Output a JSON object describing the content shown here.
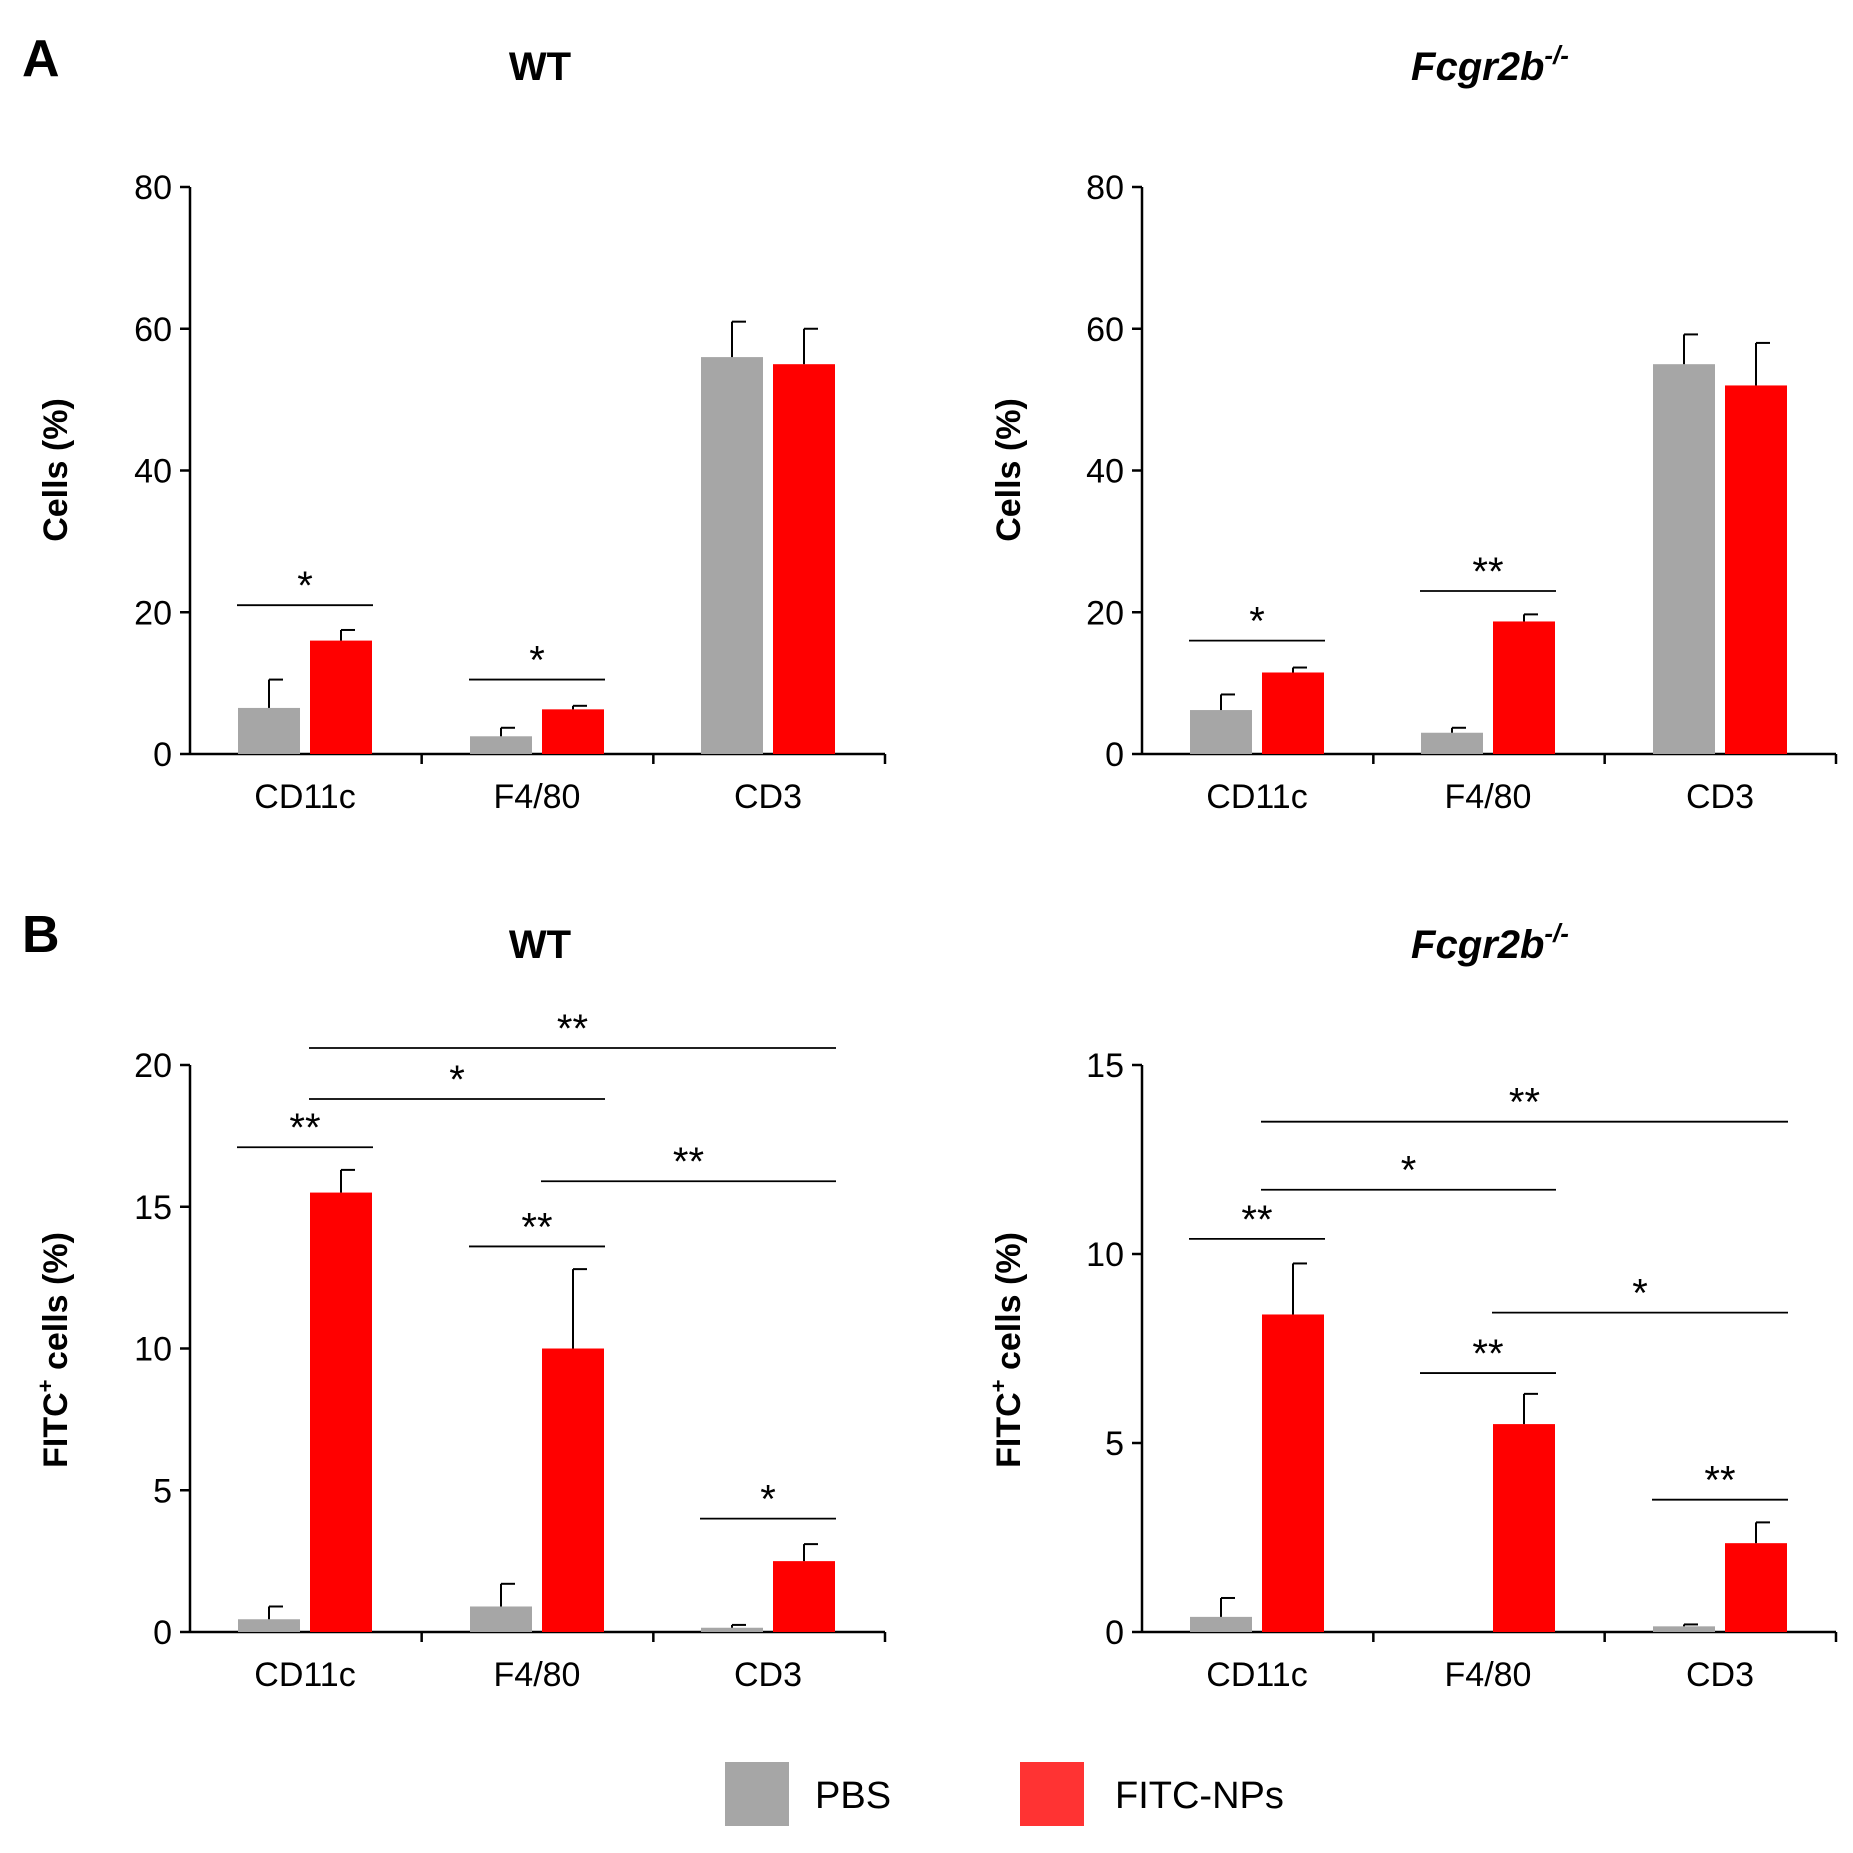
{
  "panels": [
    {
      "letter": "A"
    },
    {
      "letter": "B"
    }
  ],
  "legend": {
    "items": [
      {
        "label": "PBS",
        "color": "#a6a6a6"
      },
      {
        "label": "FITC-NPs",
        "color": "#ff0000"
      }
    ],
    "legend_swatch_colors": {
      "PBS": "#a6a6a6",
      "FITC-NPs": "#ff3333"
    }
  },
  "chart_data": [
    {
      "panel": "A",
      "type": "bar",
      "title": "WT",
      "ylabel": "Cells (%)",
      "categories": [
        "CD11c",
        "F4/80",
        "CD3"
      ],
      "ylim": [
        0,
        80
      ],
      "yticks": [
        0,
        20,
        40,
        60,
        80
      ],
      "series": [
        {
          "name": "PBS",
          "color": "#a6a6a6",
          "values": [
            6.5,
            2.5,
            56
          ],
          "errors": [
            4,
            1.2,
            5
          ]
        },
        {
          "name": "FITC-NPs",
          "color": "#ff0000",
          "values": [
            16,
            6.3,
            55
          ],
          "errors": [
            1.5,
            0.5,
            5
          ]
        }
      ],
      "significance": [
        {
          "from": [
            0,
            0
          ],
          "to": [
            0,
            1
          ],
          "y": 21,
          "label": "*"
        },
        {
          "from": [
            1,
            0
          ],
          "to": [
            1,
            1
          ],
          "y": 10.5,
          "label": "*"
        }
      ]
    },
    {
      "panel": "A",
      "type": "bar",
      "title": "Fcgr2b",
      "title_sup": "-/-",
      "ylabel": "Cells (%)",
      "categories": [
        "CD11c",
        "F4/80",
        "CD3"
      ],
      "ylim": [
        0,
        80
      ],
      "yticks": [
        0,
        20,
        40,
        60,
        80
      ],
      "series": [
        {
          "name": "PBS",
          "color": "#a6a6a6",
          "values": [
            6.2,
            3,
            55
          ],
          "errors": [
            2.2,
            0.7,
            4.2
          ]
        },
        {
          "name": "FITC-NPs",
          "color": "#ff0000",
          "values": [
            11.5,
            18.7,
            52
          ],
          "errors": [
            0.7,
            1,
            6
          ]
        }
      ],
      "significance": [
        {
          "from": [
            0,
            0
          ],
          "to": [
            0,
            1
          ],
          "y": 16,
          "label": "*"
        },
        {
          "from": [
            1,
            0
          ],
          "to": [
            1,
            1
          ],
          "y": 23,
          "label": "**"
        }
      ]
    },
    {
      "panel": "B",
      "type": "bar",
      "title": "WT",
      "ylabel": "FITC",
      "ylabel_sup": "+",
      "ylabel_rest": " cells (%)",
      "categories": [
        "CD11c",
        "F4/80",
        "CD3"
      ],
      "ylim": [
        0,
        20
      ],
      "yticks": [
        0,
        5,
        10,
        15,
        20
      ],
      "series": [
        {
          "name": "PBS",
          "color": "#a6a6a6",
          "values": [
            0.45,
            0.9,
            0.15
          ],
          "errors": [
            0.45,
            0.8,
            0.1
          ]
        },
        {
          "name": "FITC-NPs",
          "color": "#ff0000",
          "values": [
            15.5,
            10,
            2.5
          ],
          "errors": [
            0.8,
            2.8,
            0.6
          ]
        }
      ],
      "significance": [
        {
          "from": [
            0,
            0
          ],
          "to": [
            0,
            1
          ],
          "y": 17.1,
          "label": "**"
        },
        {
          "from": [
            0,
            1
          ],
          "to": [
            1,
            1
          ],
          "y": 18.8,
          "label": "*"
        },
        {
          "from": [
            0,
            1
          ],
          "to": [
            2,
            1
          ],
          "y": 20.6,
          "label": "**"
        },
        {
          "from": [
            1,
            0
          ],
          "to": [
            1,
            1
          ],
          "y": 13.6,
          "label": "**"
        },
        {
          "from": [
            1,
            1
          ],
          "to": [
            2,
            1
          ],
          "y": 15.9,
          "label": "**"
        },
        {
          "from": [
            2,
            0
          ],
          "to": [
            2,
            1
          ],
          "y": 4,
          "label": "*"
        }
      ]
    },
    {
      "panel": "B",
      "type": "bar",
      "title": "Fcgr2b",
      "title_sup": "-/-",
      "ylabel": "FITC",
      "ylabel_sup": "+",
      "ylabel_rest": " cells (%)",
      "categories": [
        "CD11c",
        "F4/80",
        "CD3"
      ],
      "ylim": [
        0,
        15
      ],
      "yticks": [
        0,
        5,
        10,
        15
      ],
      "series": [
        {
          "name": "PBS",
          "color": "#a6a6a6",
          "values": [
            0.4,
            0,
            0.15
          ],
          "errors": [
            0.5,
            0,
            0.05
          ]
        },
        {
          "name": "FITC-NPs",
          "color": "#ff0000",
          "values": [
            8.4,
            5.5,
            2.35
          ],
          "errors": [
            1.35,
            0.8,
            0.55
          ]
        }
      ],
      "significance": [
        {
          "from": [
            0,
            0
          ],
          "to": [
            0,
            1
          ],
          "y": 10.4,
          "label": "**"
        },
        {
          "from": [
            0,
            1
          ],
          "to": [
            1,
            1
          ],
          "y": 11.7,
          "label": "*"
        },
        {
          "from": [
            0,
            1
          ],
          "to": [
            2,
            1
          ],
          "y": 13.5,
          "label": "**"
        },
        {
          "from": [
            1,
            0
          ],
          "to": [
            1,
            1
          ],
          "y": 6.85,
          "label": "**"
        },
        {
          "from": [
            1,
            1
          ],
          "to": [
            2,
            1
          ],
          "y": 8.45,
          "label": "*"
        },
        {
          "from": [
            2,
            0
          ],
          "to": [
            2,
            1
          ],
          "y": 3.5,
          "label": "**"
        }
      ]
    }
  ]
}
